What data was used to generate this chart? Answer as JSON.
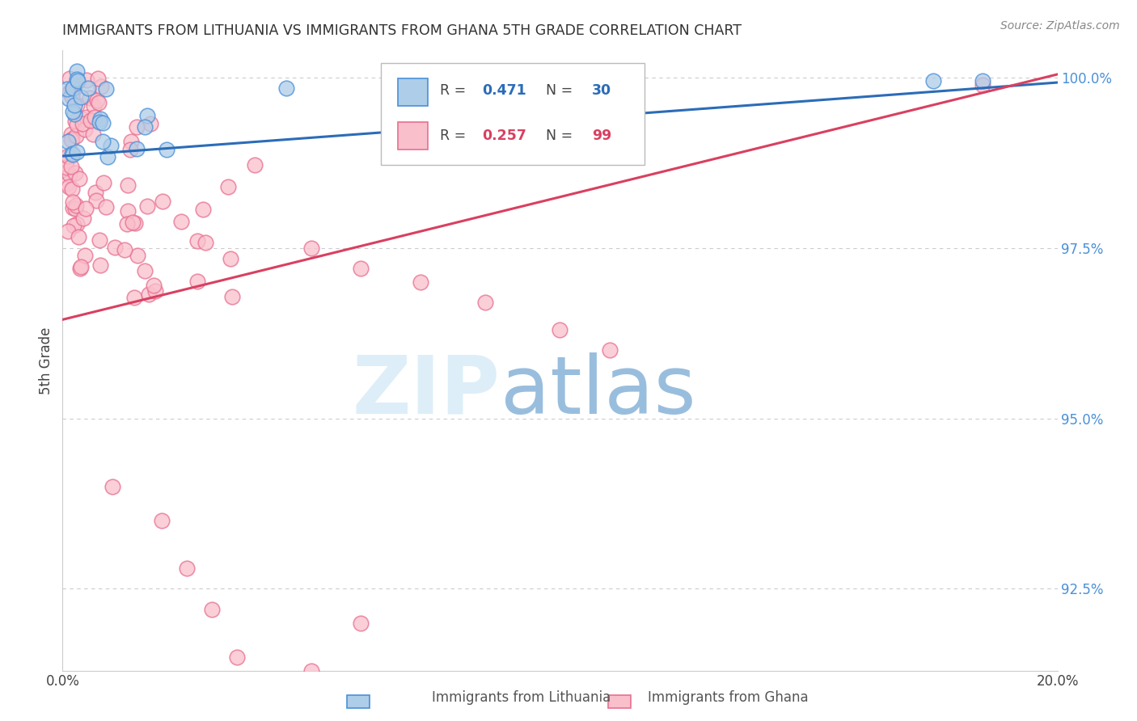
{
  "title": "IMMIGRANTS FROM LITHUANIA VS IMMIGRANTS FROM GHANA 5TH GRADE CORRELATION CHART",
  "source": "Source: ZipAtlas.com",
  "ylabel": "5th Grade",
  "xlim": [
    0.0,
    0.2
  ],
  "ylim": [
    0.913,
    1.004
  ],
  "yticks": [
    0.925,
    0.95,
    0.975,
    1.0
  ],
  "ytick_labels": [
    "92.5%",
    "95.0%",
    "97.5%",
    "100.0%"
  ],
  "legend_blue_r": "0.471",
  "legend_blue_n": "30",
  "legend_pink_r": "0.257",
  "legend_pink_n": "99",
  "blue_fill_color": "#aecde8",
  "blue_edge_color": "#4a90d9",
  "pink_fill_color": "#f9c0cc",
  "pink_edge_color": "#e87090",
  "blue_line_color": "#2b6cb8",
  "pink_line_color": "#d94060",
  "background_color": "#ffffff",
  "grid_color": "#cccccc",
  "title_color": "#333333",
  "right_axis_color": "#4a90d9",
  "blue_line_x0": 0.0,
  "blue_line_y0": 0.9885,
  "blue_line_x1": 0.2,
  "blue_line_y1": 0.9993,
  "pink_line_x0": 0.0,
  "pink_line_y0": 0.9645,
  "pink_line_x1": 0.2,
  "pink_line_y1": 1.0005
}
